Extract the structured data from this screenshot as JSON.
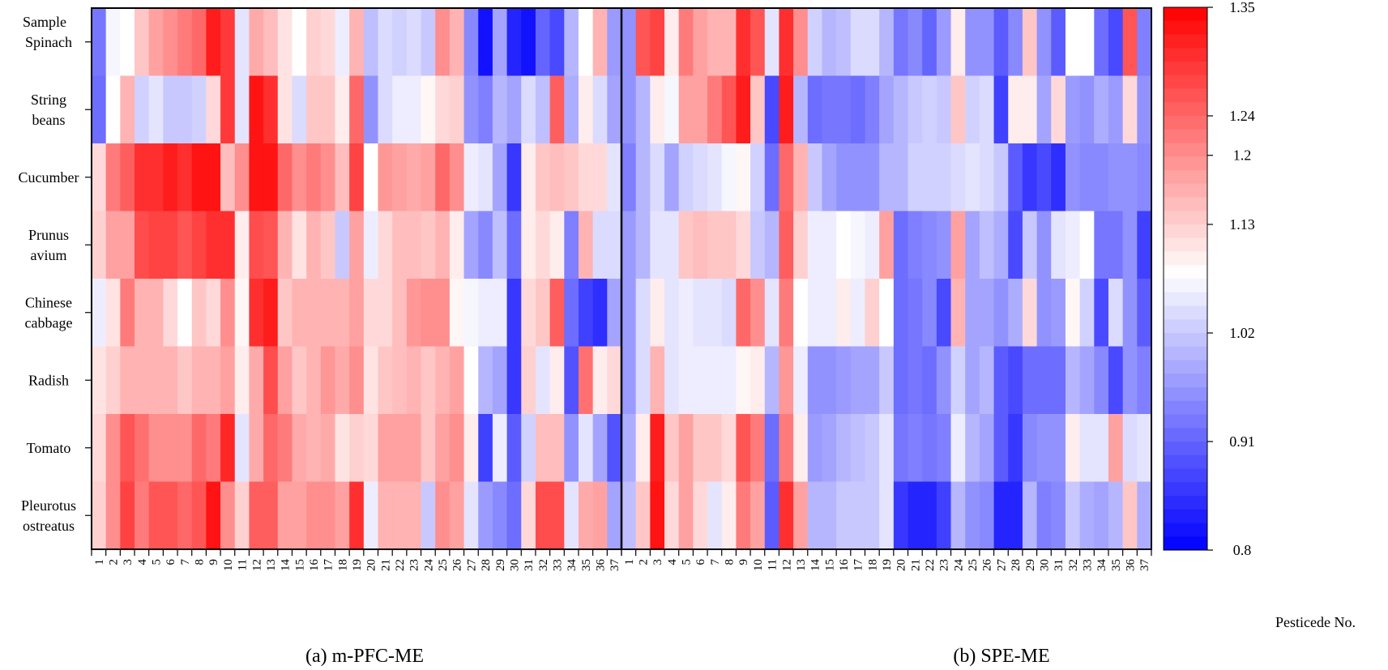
{
  "chart_data": {
    "type": "heatmap",
    "corner_label": "Sample",
    "row_labels": [
      [
        "Spinach"
      ],
      [
        "String",
        "beans"
      ],
      [
        "Cucumber"
      ],
      [
        "Prunus",
        "avium"
      ],
      [
        "Chinese",
        "cabbage"
      ],
      [
        "Radish"
      ],
      [
        "Tomato"
      ],
      [
        "Pleurotus",
        "ostreatus"
      ]
    ],
    "x_categories": [
      "1",
      "2",
      "3",
      "4",
      "5",
      "6",
      "7",
      "8",
      "9",
      "10",
      "11",
      "12",
      "13",
      "14",
      "15",
      "16",
      "17",
      "18",
      "19",
      "20",
      "21",
      "22",
      "23",
      "24",
      "25",
      "26",
      "27",
      "28",
      "29",
      "30",
      "31",
      "32",
      "33",
      "34",
      "35",
      "36",
      "37"
    ],
    "xlabel": "Pesticede No.",
    "colorbar": {
      "min": 0.8,
      "max": 1.35,
      "tick_labels": [
        "1.35",
        "1.24",
        "1.2",
        "1.13",
        "1.02",
        "0.91",
        "0.8"
      ],
      "low_color": "#0000ff",
      "mid_color": "#ffffff",
      "high_color": "#ff0000"
    },
    "panels": [
      {
        "caption": "(a) m-PFC-ME",
        "values": [
          [
            0.93,
            1.07,
            1.08,
            1.14,
            1.18,
            1.2,
            1.22,
            1.24,
            1.32,
            1.29,
            1.05,
            1.17,
            1.15,
            1.11,
            1.08,
            1.13,
            1.12,
            1.06,
            1.16,
            1.01,
            1.04,
            1.03,
            1.04,
            1.02,
            1.2,
            1.16,
            0.95,
            0.82,
            0.98,
            0.84,
            0.82,
            0.91,
            0.88,
            1.0,
            1.08,
            1.16,
            0.97
          ],
          [
            0.92,
            1.08,
            1.16,
            1.03,
            1.05,
            1.02,
            1.02,
            1.03,
            1.12,
            1.29,
            1.05,
            1.33,
            1.3,
            1.11,
            1.04,
            1.14,
            1.14,
            1.1,
            1.24,
            0.96,
            1.04,
            1.06,
            1.06,
            1.09,
            1.12,
            1.13,
            0.96,
            0.94,
            1.0,
            0.98,
            1.04,
            1.01,
            1.25,
            0.99,
            1.1,
            1.04,
            0.98
          ],
          [
            1.12,
            1.22,
            1.25,
            1.3,
            1.3,
            1.32,
            1.3,
            1.33,
            1.33,
            1.15,
            1.2,
            1.33,
            1.33,
            1.24,
            1.2,
            1.22,
            1.2,
            1.15,
            1.28,
            1.08,
            1.19,
            1.18,
            1.17,
            1.18,
            1.24,
            1.2,
            1.06,
            1.05,
            0.98,
            0.86,
            1.1,
            1.14,
            1.15,
            1.14,
            1.12,
            1.12,
            1.05
          ],
          [
            1.13,
            1.18,
            1.18,
            1.27,
            1.28,
            1.28,
            1.26,
            1.28,
            1.3,
            1.3,
            1.1,
            1.27,
            1.26,
            1.16,
            1.11,
            1.16,
            1.14,
            1.02,
            1.18,
            1.06,
            1.12,
            1.15,
            1.15,
            1.14,
            1.16,
            1.1,
            0.98,
            0.95,
            1.01,
            0.92,
            1.1,
            1.12,
            1.1,
            0.94,
            1.16,
            1.04,
            1.04
          ],
          [
            1.06,
            1.11,
            1.22,
            1.16,
            1.16,
            1.12,
            1.08,
            1.14,
            1.12,
            1.2,
            1.09,
            1.3,
            1.32,
            1.14,
            1.16,
            1.16,
            1.16,
            1.16,
            1.18,
            1.12,
            1.12,
            1.15,
            1.19,
            1.2,
            1.2,
            1.09,
            1.07,
            1.06,
            1.06,
            0.86,
            1.12,
            1.14,
            1.25,
            0.92,
            0.87,
            0.85,
            0.98
          ],
          [
            1.11,
            1.13,
            1.16,
            1.16,
            1.16,
            1.16,
            1.14,
            1.16,
            1.16,
            1.18,
            1.1,
            1.17,
            1.27,
            1.18,
            1.14,
            1.16,
            1.19,
            1.17,
            1.2,
            1.11,
            1.14,
            1.15,
            1.16,
            1.14,
            1.16,
            1.18,
            1.08,
            1.0,
            0.98,
            0.86,
            1.13,
            1.05,
            1.1,
            0.89,
            1.23,
            1.1,
            1.12
          ],
          [
            1.12,
            1.2,
            1.26,
            1.23,
            1.2,
            1.2,
            1.2,
            1.24,
            1.22,
            1.31,
            1.05,
            1.17,
            1.24,
            1.22,
            1.17,
            1.16,
            1.17,
            1.11,
            1.13,
            1.12,
            1.18,
            1.18,
            1.18,
            1.14,
            1.18,
            1.2,
            1.1,
            0.87,
            1.06,
            0.9,
            1.03,
            1.15,
            1.15,
            0.96,
            1.05,
            0.98,
            0.89
          ],
          [
            1.13,
            1.2,
            1.28,
            1.22,
            1.26,
            1.26,
            1.24,
            1.26,
            1.33,
            1.2,
            1.13,
            1.25,
            1.25,
            1.18,
            1.18,
            1.2,
            1.2,
            1.18,
            1.3,
            1.06,
            1.16,
            1.16,
            1.16,
            1.02,
            1.2,
            1.18,
            1.05,
            0.97,
            0.95,
            0.92,
            1.12,
            1.27,
            1.27,
            1.05,
            1.17,
            1.18,
            0.98
          ]
        ]
      },
      {
        "caption": "(b) SPE-ME",
        "values": [
          [
            0.96,
            1.26,
            1.28,
            1.1,
            1.22,
            1.18,
            1.16,
            1.16,
            1.3,
            1.26,
            1.05,
            1.3,
            1.2,
            1.03,
            1.0,
            1.01,
            1.04,
            1.04,
            1.0,
            0.93,
            0.95,
            0.91,
            0.97,
            1.1,
            0.96,
            0.96,
            0.9,
            0.95,
            1.14,
            0.96,
            0.9,
            1.08,
            1.08,
            0.92,
            0.88,
            1.26,
            0.94
          ],
          [
            0.96,
            1.0,
            1.1,
            1.07,
            1.18,
            1.18,
            1.22,
            1.26,
            1.32,
            1.14,
            0.88,
            1.32,
            1.0,
            0.92,
            0.93,
            0.93,
            0.92,
            0.94,
            0.98,
            1.0,
            1.02,
            1.03,
            1.02,
            1.14,
            1.03,
            1.04,
            0.87,
            1.1,
            1.1,
            0.98,
            1.12,
            0.97,
            0.96,
            0.99,
            0.97,
            1.12,
            0.96
          ],
          [
            0.94,
            1.0,
            1.04,
            0.98,
            1.03,
            1.04,
            1.05,
            1.07,
            1.09,
            1.03,
            0.92,
            1.24,
            1.16,
            1.02,
            0.98,
            0.96,
            0.96,
            0.96,
            1.0,
            1.0,
            1.03,
            1.03,
            1.03,
            1.04,
            1.05,
            1.04,
            1.02,
            0.9,
            0.86,
            0.88,
            0.85,
            0.96,
            0.95,
            0.95,
            0.96,
            0.96,
            0.95
          ],
          [
            0.97,
            1.0,
            1.05,
            1.05,
            1.14,
            1.15,
            1.14,
            1.14,
            1.12,
            1.02,
            1.0,
            1.25,
            1.13,
            1.06,
            1.06,
            1.08,
            1.07,
            1.06,
            1.18,
            0.92,
            0.94,
            0.95,
            0.96,
            1.18,
            0.98,
            1.01,
            0.99,
            0.88,
            1.02,
            0.96,
            1.05,
            1.06,
            1.08,
            0.93,
            0.93,
            0.96,
            0.87
          ],
          [
            0.97,
            1.04,
            1.1,
            1.05,
            1.06,
            1.05,
            1.05,
            1.04,
            1.24,
            1.2,
            1.05,
            1.22,
            1.08,
            1.06,
            1.06,
            1.1,
            1.06,
            1.13,
            1.08,
            0.92,
            0.93,
            0.95,
            0.88,
            1.16,
            0.98,
            0.98,
            0.96,
            0.99,
            1.12,
            0.96,
            0.97,
            1.09,
            1.03,
            0.88,
            1.04,
            0.96,
            0.9
          ],
          [
            0.97,
            1.04,
            1.16,
            1.05,
            1.06,
            1.06,
            1.06,
            1.06,
            1.09,
            1.1,
            1.0,
            1.19,
            1.06,
            0.96,
            0.96,
            0.97,
            0.98,
            0.98,
            1.02,
            0.92,
            0.93,
            0.92,
            0.96,
            1.03,
            0.98,
            1.0,
            0.9,
            0.88,
            0.92,
            0.92,
            0.92,
            1.0,
            0.98,
            0.95,
            0.88,
            0.96,
            0.94
          ],
          [
            0.99,
            1.1,
            1.32,
            1.14,
            1.18,
            1.14,
            1.14,
            1.12,
            1.26,
            1.22,
            0.92,
            1.22,
            1.1,
            0.97,
            0.98,
            1.0,
            1.01,
            1.02,
            1.05,
            0.93,
            0.94,
            0.93,
            0.94,
            1.06,
            1.0,
            0.98,
            0.9,
            0.86,
            0.95,
            0.96,
            0.96,
            1.1,
            1.05,
            1.05,
            1.18,
            1.04,
            1.05
          ],
          [
            1.01,
            1.14,
            1.33,
            1.12,
            1.18,
            1.12,
            1.05,
            1.1,
            1.22,
            1.18,
            0.9,
            1.3,
            1.18,
            1.0,
            1.0,
            1.02,
            1.02,
            1.02,
            1.05,
            0.86,
            0.84,
            0.84,
            0.87,
            1.0,
            0.96,
            0.95,
            0.84,
            0.84,
            1.0,
            0.94,
            0.95,
            1.02,
            0.99,
            0.98,
            1.0,
            1.14,
            0.99
          ]
        ]
      }
    ]
  }
}
